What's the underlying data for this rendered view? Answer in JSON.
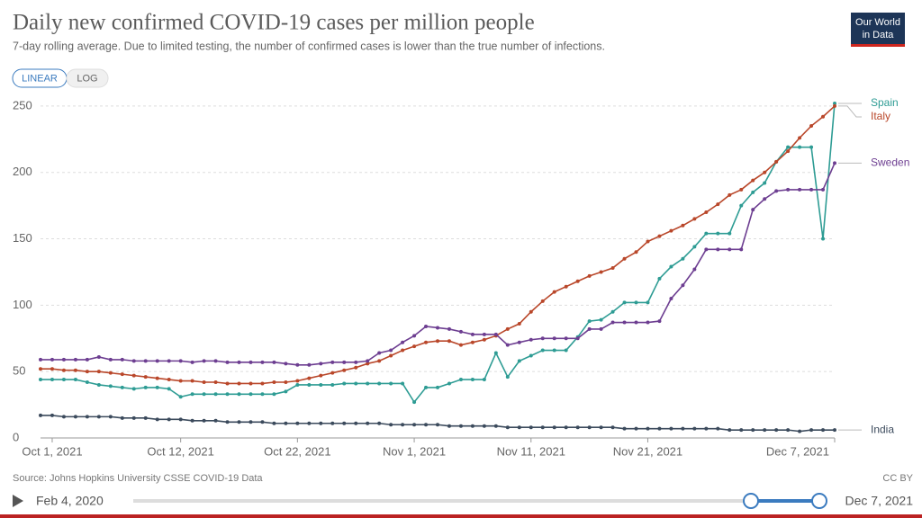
{
  "chart_data": {
    "type": "line",
    "title": "Daily new confirmed COVID-19 cases per million people",
    "subtitle": "7-day rolling average. Due to limited testing, the number of confirmed cases is lower than the true number of infections.",
    "source": "Source: Johns Hopkins University CSSE COVID-19 Data",
    "license": "CC BY",
    "logo": [
      "Our World",
      "in Data"
    ],
    "scale_buttons": [
      "LINEAR",
      "LOG"
    ],
    "timeline": {
      "start": "Feb 4, 2020",
      "end": "Dec 7, 2021"
    },
    "x": [
      "2021-09-30",
      "2021-10-01",
      "2021-10-02",
      "2021-10-03",
      "2021-10-04",
      "2021-10-05",
      "2021-10-06",
      "2021-10-07",
      "2021-10-08",
      "2021-10-09",
      "2021-10-10",
      "2021-10-11",
      "2021-10-12",
      "2021-10-13",
      "2021-10-14",
      "2021-10-15",
      "2021-10-16",
      "2021-10-17",
      "2021-10-18",
      "2021-10-19",
      "2021-10-20",
      "2021-10-21",
      "2021-10-22",
      "2021-10-23",
      "2021-10-24",
      "2021-10-25",
      "2021-10-26",
      "2021-10-27",
      "2021-10-28",
      "2021-10-29",
      "2021-10-30",
      "2021-10-31",
      "2021-11-01",
      "2021-11-02",
      "2021-11-03",
      "2021-11-04",
      "2021-11-05",
      "2021-11-06",
      "2021-11-07",
      "2021-11-08",
      "2021-11-09",
      "2021-11-10",
      "2021-11-11",
      "2021-11-12",
      "2021-11-13",
      "2021-11-14",
      "2021-11-15",
      "2021-11-16",
      "2021-11-17",
      "2021-11-18",
      "2021-11-19",
      "2021-11-20",
      "2021-11-21",
      "2021-11-22",
      "2021-11-23",
      "2021-11-24",
      "2021-11-25",
      "2021-11-26",
      "2021-11-27",
      "2021-11-28",
      "2021-11-29",
      "2021-11-30",
      "2021-12-01",
      "2021-12-02",
      "2021-12-03",
      "2021-12-04",
      "2021-12-05",
      "2021-12-06",
      "2021-12-07"
    ],
    "series": [
      {
        "name": "Spain",
        "color": "#2e9c94",
        "values": [
          44,
          44,
          44,
          44,
          42,
          40,
          39,
          38,
          37,
          38,
          38,
          37,
          31,
          33,
          33,
          33,
          33,
          33,
          33,
          33,
          33,
          35,
          40,
          40,
          40,
          40,
          41,
          41,
          41,
          41,
          41,
          41,
          27,
          38,
          38,
          41,
          44,
          44,
          44,
          64,
          46,
          58,
          62,
          66,
          66,
          66,
          76,
          88,
          89,
          95,
          102,
          102,
          102,
          120,
          129,
          135,
          144,
          154,
          154,
          154,
          175,
          185,
          192,
          208,
          219,
          219,
          219,
          150,
          252
        ]
      },
      {
        "name": "Italy",
        "color": "#b9472a",
        "values": [
          52,
          52,
          51,
          51,
          50,
          50,
          49,
          48,
          47,
          46,
          45,
          44,
          43,
          43,
          42,
          42,
          41,
          41,
          41,
          41,
          42,
          42,
          43,
          45,
          47,
          49,
          51,
          53,
          56,
          58,
          62,
          66,
          69,
          72,
          73,
          73,
          70,
          72,
          74,
          77,
          82,
          86,
          95,
          103,
          110,
          114,
          118,
          122,
          125,
          128,
          135,
          140,
          148,
          152,
          156,
          160,
          165,
          170,
          176,
          183,
          187,
          194,
          200,
          208,
          216,
          226,
          235,
          242,
          250
        ]
      },
      {
        "name": "Sweden",
        "color": "#6d3e91",
        "values": [
          59,
          59,
          59,
          59,
          59,
          61,
          59,
          59,
          58,
          58,
          58,
          58,
          58,
          57,
          58,
          58,
          57,
          57,
          57,
          57,
          57,
          56,
          55,
          55,
          56,
          57,
          57,
          57,
          58,
          64,
          66,
          72,
          77,
          84,
          83,
          82,
          80,
          78,
          78,
          78,
          70,
          72,
          74,
          75,
          75,
          75,
          75,
          82,
          82,
          87,
          87,
          87,
          87,
          88,
          105,
          115,
          127,
          142,
          142,
          142,
          142,
          172,
          180,
          186,
          187,
          187,
          187,
          187,
          207
        ]
      },
      {
        "name": "India",
        "color": "#3b4a5c",
        "values": [
          17,
          17,
          16,
          16,
          16,
          16,
          16,
          15,
          15,
          15,
          14,
          14,
          14,
          13,
          13,
          13,
          12,
          12,
          12,
          12,
          11,
          11,
          11,
          11,
          11,
          11,
          11,
          11,
          11,
          11,
          10,
          10,
          10,
          10,
          10,
          9,
          9,
          9,
          9,
          9,
          8,
          8,
          8,
          8,
          8,
          8,
          8,
          8,
          8,
          8,
          7,
          7,
          7,
          7,
          7,
          7,
          7,
          7,
          7,
          6,
          6,
          6,
          6,
          6,
          6,
          5,
          6,
          6,
          6
        ]
      }
    ],
    "xlim": [
      "2021-09-30",
      "2021-12-07"
    ],
    "xticks": [
      {
        "value": "2021-10-01",
        "label": "Oct 1, 2021"
      },
      {
        "value": "2021-10-12",
        "label": "Oct 12, 2021"
      },
      {
        "value": "2021-10-22",
        "label": "Oct 22, 2021"
      },
      {
        "value": "2021-11-01",
        "label": "Nov 1, 2021"
      },
      {
        "value": "2021-11-11",
        "label": "Nov 11, 2021"
      },
      {
        "value": "2021-11-21",
        "label": "Nov 21, 2021"
      },
      {
        "value": "2021-12-07",
        "label": "Dec 7, 2021"
      }
    ],
    "ylim": [
      0,
      254
    ],
    "yticks": [
      0,
      50,
      100,
      150,
      200,
      250
    ],
    "grid": true
  }
}
